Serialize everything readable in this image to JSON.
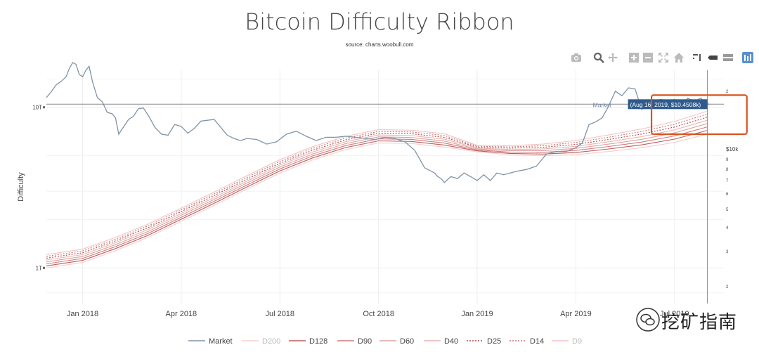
{
  "header": {
    "title": "Bitcoin Difficulty Ribbon",
    "source": "source: charts.woobull.com"
  },
  "toolbar": [
    {
      "icon": "camera-icon"
    },
    {
      "icon": "zoom-icon"
    },
    {
      "icon": "pan-icon"
    },
    {
      "icon": "zoom-in-icon"
    },
    {
      "icon": "zoom-out-icon"
    },
    {
      "icon": "autoscale-icon"
    },
    {
      "icon": "home-icon"
    },
    {
      "icon": "spike-lines-icon"
    },
    {
      "icon": "hover-closest-icon"
    },
    {
      "icon": "hover-compare-icon"
    },
    {
      "icon": "plotly-logo-icon"
    }
  ],
  "chart_data": {
    "type": "line",
    "title": "Bitcoin Difficulty Ribbon",
    "ylabel": "Difficulty",
    "yscale": "log",
    "ylim_T": [
      0.6,
      17
    ],
    "y_ticks_left": [
      {
        "value": 10,
        "label": "10T"
      },
      {
        "value": 1,
        "label": "1T"
      }
    ],
    "price_scale_ticks": [
      {
        "value": 2,
        "label": "2"
      },
      {
        "value": 10,
        "label": "$10k"
      },
      {
        "value": 9,
        "label": "9"
      },
      {
        "value": 8,
        "label": "8"
      },
      {
        "value": 7,
        "label": "7"
      },
      {
        "value": 6,
        "label": "6"
      },
      {
        "value": 5,
        "label": "5"
      },
      {
        "value": 4,
        "label": "4"
      },
      {
        "value": 3,
        "label": "3"
      },
      {
        "value": 2,
        "label": "2"
      }
    ],
    "x_ticks": [
      "Jan 2018",
      "Apr 2018",
      "Jul 2018",
      "Oct 2018",
      "Jan 2019",
      "Apr 2019",
      "Jul 2019"
    ],
    "x_range_months": [
      -1.1,
      19.5
    ],
    "hover": {
      "series": "Market",
      "label": "(Aug 16, 2019, $10.4508k)",
      "x_month": 19.0
    },
    "series": [
      {
        "name": "Market",
        "color": "#7f94a8",
        "x": [
          -1.1,
          -0.95,
          -0.8,
          -0.65,
          -0.5,
          -0.4,
          -0.3,
          -0.2,
          -0.1,
          0,
          0.1,
          0.2,
          0.3,
          0.45,
          0.6,
          0.75,
          0.9,
          1.0,
          1.1,
          1.2,
          1.4,
          1.55,
          1.7,
          1.85,
          2.0,
          2.2,
          2.4,
          2.6,
          2.8,
          3.0,
          3.2,
          3.4,
          3.6,
          3.8,
          4.0,
          4.2,
          4.4,
          4.6,
          4.8,
          5.0,
          5.3,
          5.6,
          5.9,
          6.2,
          6.5,
          6.8,
          7.1,
          7.4,
          7.7,
          8.0,
          8.3,
          8.6,
          8.9,
          9.2,
          9.5,
          9.8,
          10.1,
          10.4,
          10.7,
          10.8,
          10.9,
          11.0,
          11.2,
          11.4,
          11.6,
          11.8,
          12.0,
          12.2,
          12.4,
          12.6,
          12.8,
          13.0,
          13.2,
          13.5,
          13.8,
          14.1,
          14.4,
          14.7,
          15.0,
          15.2,
          15.4,
          15.6,
          15.8,
          16.0,
          16.2,
          16.4,
          16.6,
          16.8,
          17.0,
          17.2,
          17.4,
          17.6,
          17.8,
          18.0,
          18.2,
          18.4,
          18.6,
          18.8,
          19.0
        ],
        "y": [
          11.5,
          12.5,
          13.8,
          14.5,
          15.5,
          17.5,
          19,
          18.5,
          16,
          15.5,
          17,
          18,
          14.5,
          11.5,
          10.8,
          9.3,
          9.1,
          8.6,
          6.8,
          7.3,
          8.4,
          8.8,
          9.8,
          9.9,
          8.9,
          7.5,
          6.8,
          6.7,
          7.8,
          7.6,
          6.9,
          7.4,
          8.2,
          8.3,
          8.4,
          7.5,
          6.7,
          6.4,
          6.2,
          6.4,
          6.3,
          5.9,
          6.1,
          6.8,
          7.1,
          6.6,
          6.2,
          6.5,
          6.5,
          6.6,
          6.5,
          6.4,
          6.3,
          6.5,
          6.4,
          6.1,
          5.4,
          4.2,
          3.9,
          3.7,
          3.6,
          3.4,
          3.7,
          3.6,
          3.9,
          3.7,
          3.5,
          3.8,
          3.5,
          3.9,
          3.8,
          3.9,
          4.0,
          4.1,
          4.3,
          5.1,
          5.3,
          5.3,
          5.6,
          6.0,
          7.8,
          8.1,
          8.6,
          10.2,
          12.6,
          11.8,
          13.2,
          13.0,
          9.7,
          10.4,
          11.0,
          11.2,
          10.8,
          11.2,
          10.0,
          11.4,
          10.9,
          11.4,
          10.45
        ]
      },
      {
        "name": "D200",
        "color": "#f6cdcd",
        "dash": "none"
      },
      {
        "name": "D128",
        "color": "#c25a5a",
        "dash": "none"
      },
      {
        "name": "D90",
        "color": "#cf7a7a",
        "dash": "none"
      },
      {
        "name": "D60",
        "color": "#dea0a0",
        "dash": "none"
      },
      {
        "name": "D40",
        "color": "#e8b4b4",
        "dash": "none"
      },
      {
        "name": "D25",
        "color": "#b04b4b",
        "dash": "dot"
      },
      {
        "name": "D14",
        "color": "#cc7777",
        "dash": "dot"
      },
      {
        "name": "D9",
        "color": "#f3c3c3",
        "dash": "none"
      }
    ],
    "ribbon_trend": {
      "x": [
        -1.1,
        0,
        1,
        2,
        3,
        4,
        5,
        6,
        7,
        8,
        9,
        10,
        11,
        12,
        13,
        14,
        15,
        16,
        17,
        18,
        19.0
      ],
      "y_T": [
        1.0,
        1.08,
        1.28,
        1.55,
        1.95,
        2.45,
        3.1,
        3.9,
        4.7,
        5.45,
        6.0,
        5.95,
        5.65,
        5.25,
        5.0,
        4.9,
        4.95,
        5.15,
        5.4,
        5.8,
        6.5
      ],
      "offsets": [
        0.0,
        0.05,
        0.1,
        0.15,
        0.2,
        0.25,
        0.3,
        0.35
      ]
    },
    "legend": [
      "Market",
      "D200",
      "D128",
      "D90",
      "D60",
      "D40",
      "D25",
      "D14",
      "D9"
    ],
    "highlight_box": {
      "x_from": 17.3,
      "x_to": 20.2,
      "y_from_T": 6.8,
      "y_to_T": 11.9,
      "color": "#d9531e"
    }
  },
  "watermark": {
    "text": "挖矿指南"
  }
}
